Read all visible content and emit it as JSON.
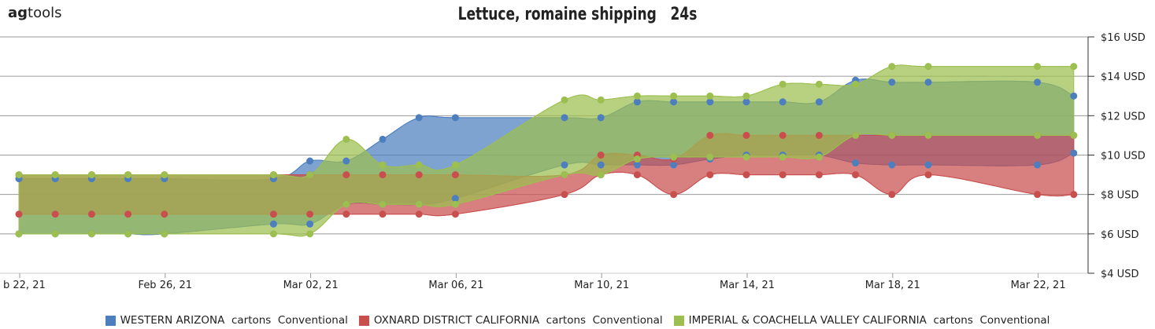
{
  "logo": {
    "bold": "ag",
    "rest": "tools"
  },
  "chart_data": {
    "type": "area",
    "title": "Lettuce, romaine shipping   24s",
    "xlabel": "",
    "ylabel": "",
    "x_tick_labels": [
      "b 22, 21",
      "Feb 26, 21",
      "Mar 02, 21",
      "Mar 06, 21",
      "Mar 10, 21",
      "Mar 14, 21",
      "Mar 18, 21",
      "Mar 22, 21"
    ],
    "x_tick_days": [
      0,
      4,
      8,
      12,
      16,
      20,
      24,
      28
    ],
    "y_tick_labels": [
      "$4 USD",
      "$6 USD",
      "$8 USD",
      "$10 USD",
      "$12 USD",
      "$14 USD",
      "$16 USD"
    ],
    "ylim": [
      4,
      16
    ],
    "grid": true,
    "legend_position": "bottom",
    "series": [
      {
        "name": "WESTERN ARIZONA  cartons  Conventional",
        "color": "#4d7fbf",
        "x_days": [
          0,
          1,
          2,
          3,
          4,
          7,
          8,
          9,
          10,
          11,
          12,
          15,
          16,
          17,
          18,
          19,
          20,
          21,
          22,
          23,
          24,
          25,
          28,
          29
        ],
        "low": [
          6,
          6,
          6,
          6,
          6,
          6.5,
          6.5,
          7.5,
          7.5,
          7.5,
          7.8,
          9.5,
          9.5,
          9.5,
          9.5,
          9.8,
          10,
          10,
          10,
          9.6,
          9.5,
          9.5,
          9.5,
          10.1
        ],
        "high": [
          8.8,
          8.8,
          8.8,
          8.8,
          8.8,
          8.8,
          9.7,
          9.7,
          10.8,
          11.9,
          11.9,
          11.9,
          11.9,
          12.7,
          12.7,
          12.7,
          12.7,
          12.7,
          12.7,
          13.8,
          13.7,
          13.7,
          13.7,
          13
        ]
      },
      {
        "name": "OXNARD DISTRICT CALIFORNIA  cartons  Conventional",
        "color": "#c94f4f",
        "x_days": [
          0,
          1,
          2,
          3,
          4,
          7,
          8,
          9,
          10,
          11,
          12,
          15,
          16,
          17,
          18,
          19,
          20,
          21,
          22,
          23,
          24,
          25,
          28,
          29
        ],
        "low": [
          7,
          7,
          7,
          7,
          7,
          7,
          7,
          7,
          7,
          7,
          7,
          8,
          9,
          9,
          8,
          9,
          9,
          9,
          9,
          9,
          8,
          9,
          8,
          8
        ],
        "high": [
          9,
          9,
          9,
          9,
          9,
          9,
          9,
          9,
          9,
          9,
          9,
          9,
          10,
          10,
          9.8,
          11,
          11,
          11,
          11,
          11,
          11,
          11,
          11,
          11
        ]
      },
      {
        "name": "IMPERIAL & COACHELLA VALLEY CALIFORNIA  cartons  Conventional",
        "color": "#9cbf4f",
        "x_days": [
          0,
          1,
          2,
          3,
          4,
          7,
          8,
          9,
          10,
          11,
          12,
          15,
          16,
          17,
          18,
          19,
          20,
          21,
          22,
          23,
          24,
          25,
          28,
          29
        ],
        "low": [
          6,
          6,
          6,
          6,
          6,
          6,
          6,
          7.5,
          7.5,
          7.5,
          7.5,
          9,
          9,
          9.8,
          9.9,
          9.9,
          9.9,
          9.9,
          9.9,
          11,
          11,
          11,
          11,
          11
        ],
        "high": [
          9,
          9,
          9,
          9,
          9,
          9,
          9,
          10.8,
          9.5,
          9.5,
          9.5,
          12.8,
          12.8,
          13,
          13,
          13,
          13,
          13.6,
          13.6,
          13.6,
          14.5,
          14.5,
          14.5,
          14.5
        ]
      }
    ]
  }
}
